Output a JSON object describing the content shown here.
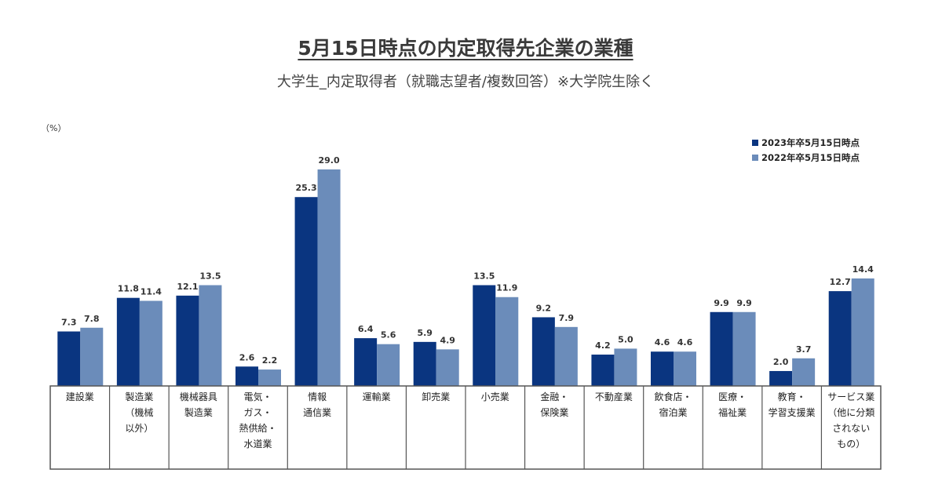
{
  "chart_data": {
    "type": "bar",
    "title": "5月15日時点の内定取得先企業の業種",
    "subtitle": "大学生_内定取得者（就職志望者/複数回答）※大学院生除く",
    "ylabel": "（%）",
    "ylim": [
      0,
      30
    ],
    "grid": false,
    "legend_position": "top-right",
    "categories": [
      [
        "建設業"
      ],
      [
        "製造業",
        "（機械",
        "以外）"
      ],
      [
        "機械器具",
        "製造業"
      ],
      [
        "電気・",
        "ガス・",
        "熱供給・",
        "水道業"
      ],
      [
        "情報",
        "通信業"
      ],
      [
        "運輸業"
      ],
      [
        "卸売業"
      ],
      [
        "小売業"
      ],
      [
        "金融・",
        "保険業"
      ],
      [
        "不動産業"
      ],
      [
        "飲食店・",
        "宿泊業"
      ],
      [
        "医療・",
        "福祉業"
      ],
      [
        "教育・",
        "学習支援業"
      ],
      [
        "サービス業",
        "（他に分類",
        "されない",
        "もの）"
      ]
    ],
    "series": [
      {
        "name": "2023年卒5月15日時点",
        "color": "#0a3580",
        "values": [
          7.3,
          11.8,
          12.1,
          2.6,
          25.3,
          6.4,
          5.9,
          13.5,
          9.2,
          4.2,
          4.6,
          9.9,
          2.0,
          12.7
        ]
      },
      {
        "name": "2022年卒5月15日時点",
        "color": "#6b8cba",
        "values": [
          7.8,
          11.4,
          13.5,
          2.2,
          29.0,
          5.6,
          4.9,
          11.9,
          7.9,
          5.0,
          4.6,
          9.9,
          3.7,
          14.4
        ]
      }
    ]
  }
}
